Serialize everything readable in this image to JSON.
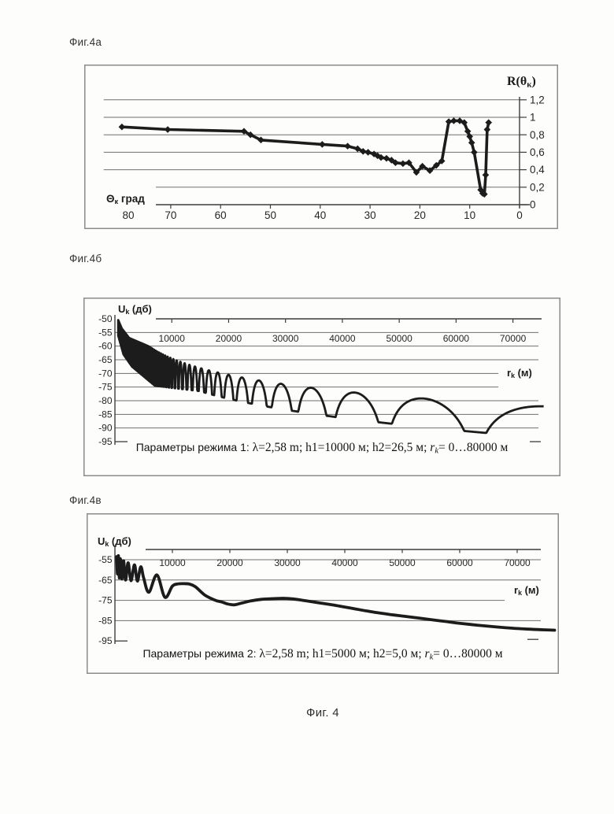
{
  "page": {
    "background": "#fdfdfb",
    "fig_caption": "Фиг. 4"
  },
  "style": {
    "ink": "#1c1c1c",
    "grid_color": "#6f6f6f",
    "axis_color": "#3c3c3c",
    "border_color": "#8c8c8c",
    "text_color": "#262626"
  },
  "chart_data": [
    {
      "id": "fig4a",
      "figure_label": "Фиг.4а",
      "type": "line",
      "title": "R(θк)",
      "title_segments": [
        [
          "R(θ",
          ""
        ],
        [
          "к",
          "sub"
        ],
        [
          ")",
          ""
        ]
      ],
      "xlabel": "Θк град",
      "xlabel_segments": [
        [
          "Θ",
          ""
        ],
        [
          "к",
          "sub"
        ],
        [
          " град",
          ""
        ]
      ],
      "x_reversed": true,
      "xlim": [
        84,
        0
      ],
      "x_tick_values": [
        80,
        70,
        60,
        50,
        40,
        30,
        20,
        10,
        0
      ],
      "x_tick_labels": [
        "80",
        "70",
        "60",
        "50",
        "40",
        "30",
        "20",
        "10",
        "0"
      ],
      "ylim": [
        0,
        1.25
      ],
      "y_axis_side": "right",
      "y_tick_values": [
        1.2,
        1.0,
        0.8,
        0.6,
        0.4,
        0.2,
        0
      ],
      "y_tick_labels": [
        "1,2",
        "1",
        "0,8",
        "0,6",
        "0,4",
        "0,2",
        "0"
      ],
      "grid": true,
      "marker": "diamond",
      "points": [
        [
          79.8,
          0.89
        ],
        [
          70.6,
          0.86
        ],
        [
          55.3,
          0.84
        ],
        [
          54.0,
          0.8
        ],
        [
          51.9,
          0.74
        ],
        [
          39.6,
          0.69
        ],
        [
          34.5,
          0.67
        ],
        [
          32.5,
          0.64
        ],
        [
          31.4,
          0.61
        ],
        [
          30.4,
          0.6
        ],
        [
          29.2,
          0.58
        ],
        [
          28.5,
          0.56
        ],
        [
          27.8,
          0.54
        ],
        [
          26.7,
          0.53
        ],
        [
          25.7,
          0.51
        ],
        [
          24.9,
          0.48
        ],
        [
          23.4,
          0.47
        ],
        [
          22.2,
          0.48
        ],
        [
          20.7,
          0.37
        ],
        [
          19.5,
          0.44
        ],
        [
          18.0,
          0.39
        ],
        [
          16.7,
          0.45
        ],
        [
          15.6,
          0.5
        ],
        [
          14.2,
          0.95
        ],
        [
          13.2,
          0.96
        ],
        [
          12.0,
          0.96
        ],
        [
          11.1,
          0.94
        ],
        [
          10.4,
          0.84
        ],
        [
          10.0,
          0.78
        ],
        [
          9.6,
          0.71
        ],
        [
          9.1,
          0.6
        ],
        [
          7.8,
          0.17
        ],
        [
          7.4,
          0.13
        ],
        [
          7.05,
          0.12
        ],
        [
          6.8,
          0.34
        ],
        [
          6.5,
          0.86
        ],
        [
          6.2,
          0.94
        ]
      ]
    },
    {
      "id": "fig4b",
      "figure_label": "Фиг.4б",
      "type": "line",
      "ylabel": "Uk (дб)",
      "ylabel_segments": [
        [
          "U",
          ""
        ],
        [
          "k",
          "sub"
        ],
        [
          " (дб)",
          ""
        ]
      ],
      "xlabel": "rk (м)",
      "xlabel_segments": [
        [
          "r",
          ""
        ],
        [
          "k",
          "sub"
        ],
        [
          " (м)",
          ""
        ]
      ],
      "xlim": [
        0,
        75500
      ],
      "x_tick_values": [
        10000,
        20000,
        30000,
        40000,
        50000,
        60000,
        70000
      ],
      "x_tick_labels": [
        "10000",
        "20000",
        "30000",
        "40000",
        "50000",
        "60000",
        "70000"
      ],
      "ylim": [
        -95,
        -50
      ],
      "y_tick_values": [
        -50,
        -55,
        -60,
        -65,
        -70,
        -75,
        -80,
        -85,
        -90,
        -95
      ],
      "y_tick_labels": [
        "-50",
        "-55",
        "-60",
        "-65",
        "-70",
        "-75",
        "-80",
        "-85",
        "-90",
        "-95"
      ],
      "grid": true,
      "caption_text": "Параметры режима 1: λ=2,58 m; h1=10000 м; h2=26,5 м; rk= 0…80000 м",
      "caption_segments": [
        [
          "Параметры режима 1: ",
          "sans"
        ],
        [
          "λ=2,58 m; h1=10000 м; h2=26,5 м; ",
          "serif"
        ],
        [
          "r",
          "serif-italic"
        ],
        [
          "k",
          "serif-sub-italic"
        ],
        [
          "= 0…80000 м",
          "serif"
        ]
      ],
      "signal_model": {
        "kind": "two-ray-interference",
        "formula_db": "U(r) = 15.5 - 20*log10(r) + 20*log10(|sin(pi*190000/r)|)",
        "amp_const_db": 15.5,
        "interference_const_m": 190000,
        "r_start_m": 550,
        "r_end_m": 75500,
        "top_envelope_db": [
          [
            550,
            -50.3
          ],
          [
            1200,
            -53.5
          ],
          [
            2500,
            -57
          ],
          [
            6000,
            -60.1
          ]
        ],
        "bottom_envelope_db": [
          [
            550,
            -56
          ],
          [
            1500,
            -63
          ],
          [
            3000,
            -67.5
          ],
          [
            5000,
            -71
          ],
          [
            7000,
            -74.5
          ],
          [
            10000,
            -75.3
          ],
          [
            15000,
            -76.5
          ]
        ],
        "null_extra_depth_db": 8.5,
        "null_depth_slope_db_per_m": 5e-05,
        "visible_null_positions_m": [
          21100,
          23750,
          27140,
          31670,
          38000,
          47500,
          63300
        ]
      }
    },
    {
      "id": "fig4v",
      "figure_label": "Фиг.4в",
      "type": "line",
      "ylabel": "Uk (дб)",
      "ylabel_segments": [
        [
          "U",
          ""
        ],
        [
          "k",
          "sub"
        ],
        [
          " (дб)",
          ""
        ]
      ],
      "xlabel": "rk (м)",
      "xlabel_segments": [
        [
          "r",
          ""
        ],
        [
          "k",
          "sub"
        ],
        [
          " (м)",
          ""
        ]
      ],
      "xlim": [
        0,
        76500
      ],
      "x_tick_values": [
        10000,
        20000,
        30000,
        40000,
        50000,
        60000,
        70000
      ],
      "x_tick_labels": [
        "10000",
        "20000",
        "30000",
        "40000",
        "50000",
        "60000",
        "70000"
      ],
      "ylim": [
        -95,
        -50
      ],
      "y_tick_values": [
        -55,
        -65,
        -75,
        -85,
        -95
      ],
      "y_tick_labels": [
        "-55",
        "-65",
        "-75",
        "-85",
        "-95"
      ],
      "grid": true,
      "caption_text": "Параметры режима 2: λ=2,58 m; h1=5000 м; h2=5,0 м; rk= 0…80000 м",
      "caption_segments": [
        [
          "Параметры режима 2: ",
          "sans"
        ],
        [
          "λ=2,58 m; h1=5000 м; h2=5,0 м; ",
          "serif"
        ],
        [
          "r",
          "serif-italic"
        ],
        [
          "k",
          "serif-sub-italic"
        ],
        [
          "= 0…80000 м",
          "serif"
        ]
      ],
      "points": [
        [
          300,
          -53.5
        ],
        [
          450,
          -62
        ],
        [
          600,
          -53
        ],
        [
          750,
          -64
        ],
        [
          950,
          -54.5
        ],
        [
          1200,
          -64.5
        ],
        [
          1500,
          -55.5
        ],
        [
          1850,
          -65
        ],
        [
          2300,
          -56.5
        ],
        [
          2800,
          -65.3
        ],
        [
          3400,
          -57.5
        ],
        [
          3900,
          -65.5
        ],
        [
          4500,
          -58.5
        ],
        [
          5000,
          -64
        ],
        [
          5900,
          -71
        ],
        [
          7300,
          -62.5
        ],
        [
          8700,
          -73.5
        ],
        [
          10000,
          -68
        ],
        [
          11000,
          -66.9
        ],
        [
          12000,
          -66.8
        ],
        [
          13000,
          -67
        ],
        [
          14000,
          -68.3
        ],
        [
          15700,
          -72.5
        ],
        [
          17500,
          -75
        ],
        [
          18600,
          -75.8
        ],
        [
          19600,
          -76.8
        ],
        [
          20800,
          -77.2
        ],
        [
          22000,
          -76.4
        ],
        [
          23600,
          -75.3
        ],
        [
          25500,
          -74.5
        ],
        [
          27300,
          -74.2
        ],
        [
          29300,
          -74.0
        ],
        [
          31000,
          -74.3
        ],
        [
          33200,
          -75.2
        ],
        [
          35500,
          -76.2
        ],
        [
          38000,
          -77.3
        ],
        [
          40000,
          -78.3
        ],
        [
          42000,
          -79.3
        ],
        [
          44000,
          -80.3
        ],
        [
          46000,
          -81.2
        ],
        [
          48000,
          -82.0
        ],
        [
          50000,
          -82.7
        ],
        [
          52500,
          -83.6
        ],
        [
          55000,
          -84.5
        ],
        [
          57500,
          -85.4
        ],
        [
          60000,
          -86.3
        ],
        [
          63000,
          -87.2
        ],
        [
          66000,
          -88.0
        ],
        [
          69000,
          -88.7
        ],
        [
          72000,
          -89.2
        ],
        [
          74500,
          -89.5
        ],
        [
          76500,
          -89.7
        ]
      ]
    }
  ]
}
